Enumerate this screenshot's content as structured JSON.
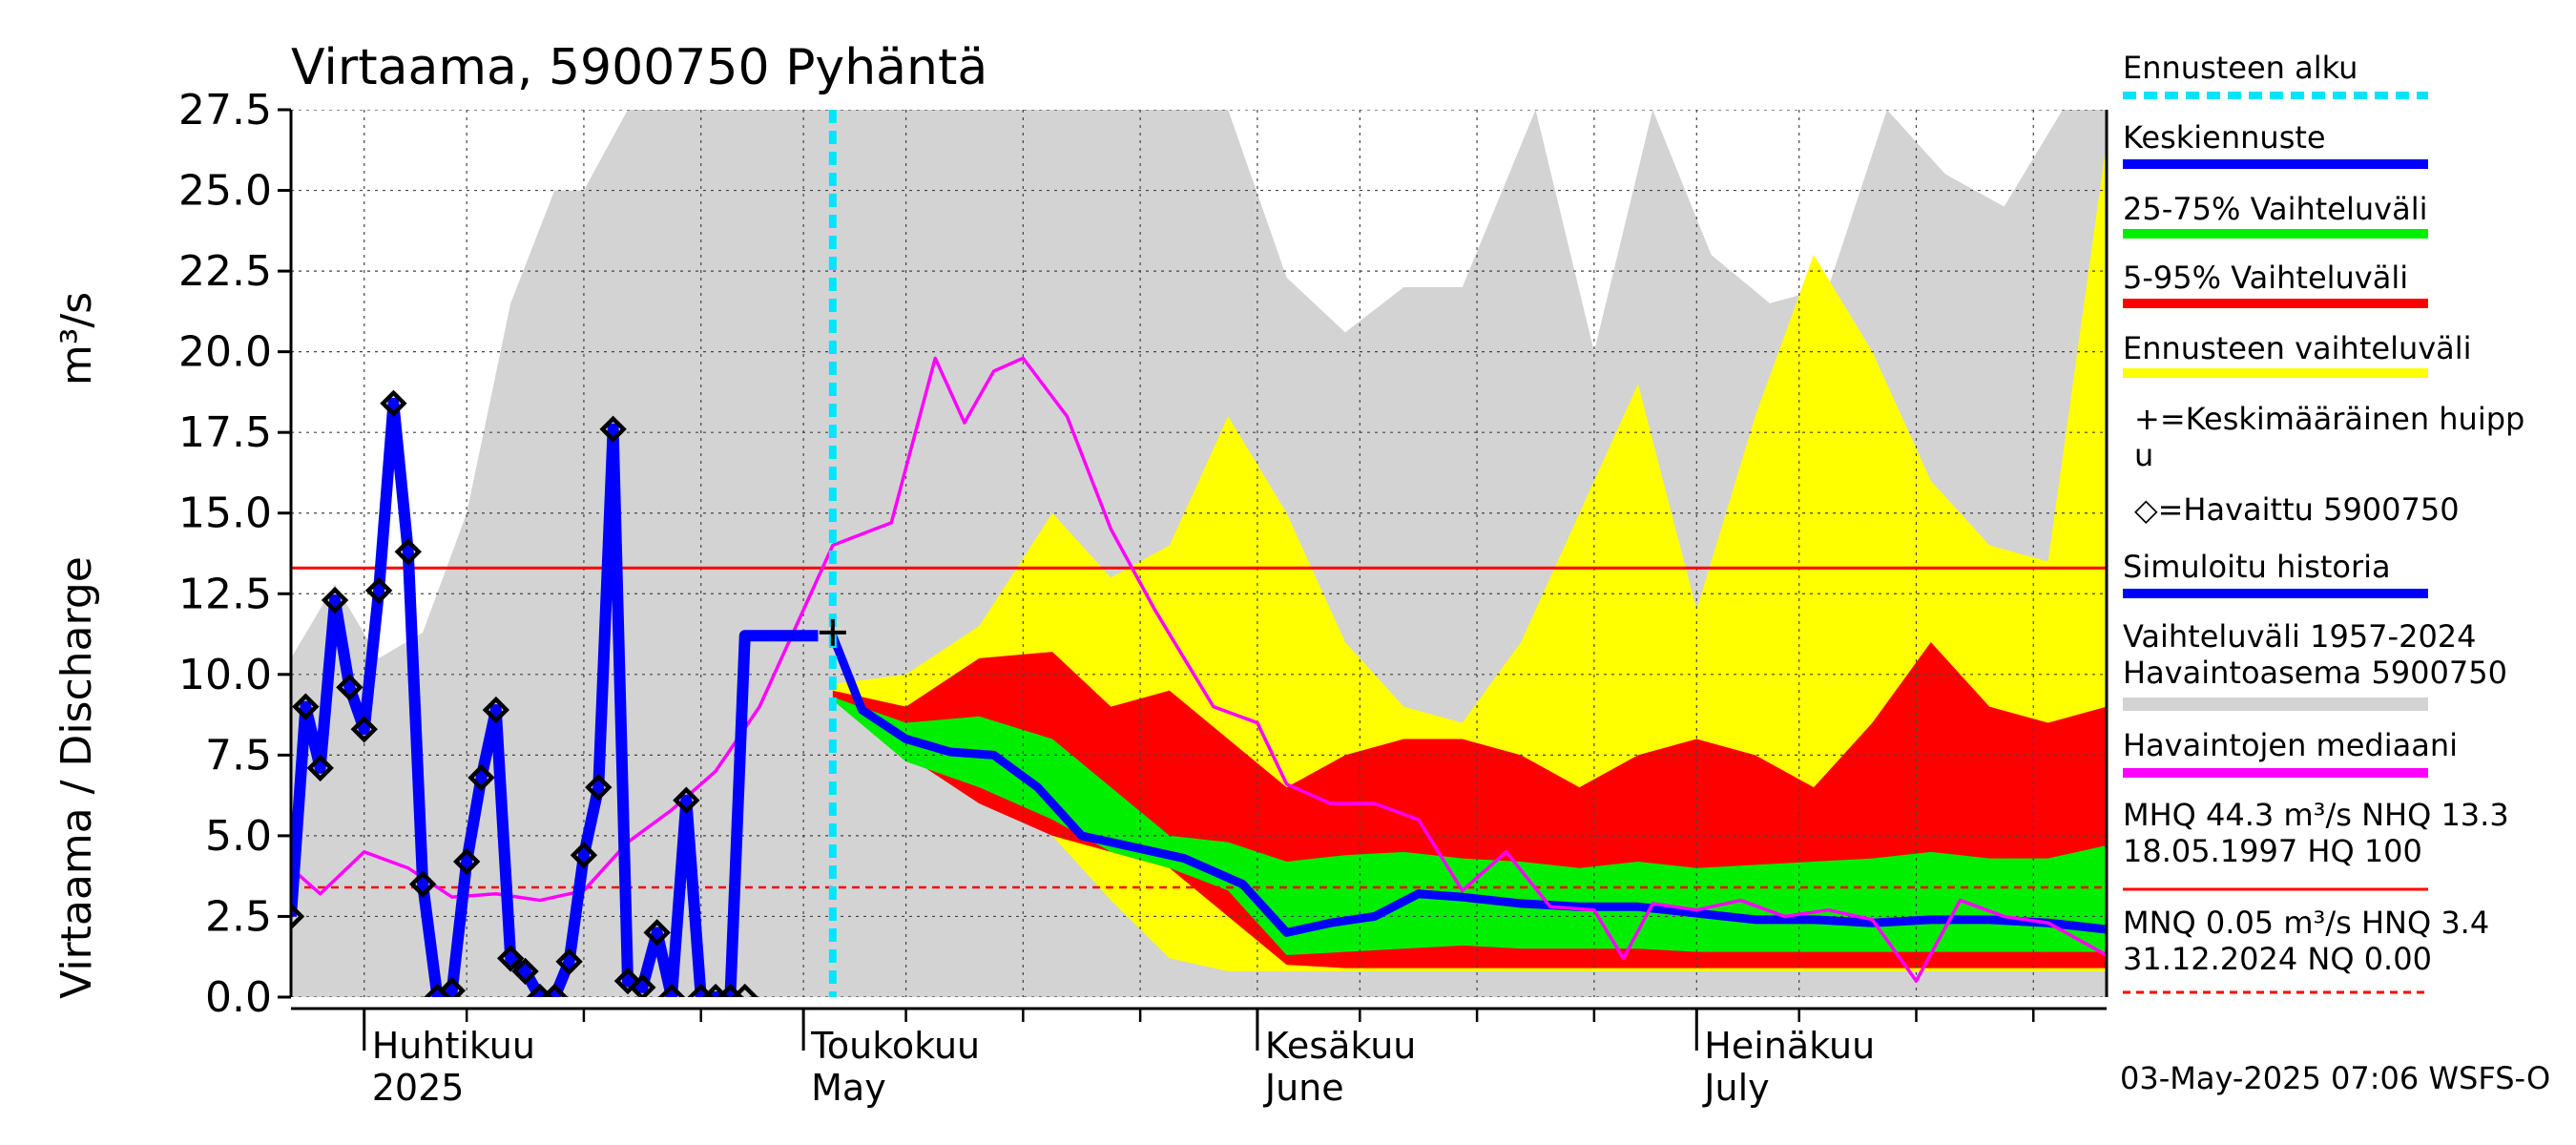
{
  "chart_data": {
    "type": "area",
    "title": "Virtaama, 5900750 Pyhäntä",
    "ylabel_left": "Virtaama / Discharge",
    "ylabel_unit": "m³/s",
    "ylim": [
      0,
      27.5
    ],
    "yticks": [
      "0.0",
      "2.5",
      "5.0",
      "7.5",
      "10.0",
      "12.5",
      "15.0",
      "17.5",
      "20.0",
      "22.5",
      "25.0",
      "27.5"
    ],
    "x_start": "2025-03-27",
    "x_end": "2025-07-29",
    "x_month_labels": [
      {
        "date": "2025-04-01",
        "fi": "Huhtikuu",
        "en": "2025"
      },
      {
        "date": "2025-05-01",
        "fi": "Toukokuu",
        "en": "May"
      },
      {
        "date": "2025-06-01",
        "fi": "Kesäkuu",
        "en": "June"
      },
      {
        "date": "2025-07-01",
        "fi": "Heinäkuu",
        "en": "July"
      }
    ],
    "forecast_start": "2025-05-03",
    "mhq_line": 13.3,
    "mnq_line": 3.4,
    "mean_peak": {
      "date": "2025-05-03",
      "value": 11.3
    },
    "series": [
      {
        "name": "Vaihteluväli 1957-2024 Havaintoasema 5900750",
        "kind": "band",
        "color": "#d3d3d3",
        "x": [
          "2025-03-27",
          "2025-03-30",
          "2025-04-02",
          "2025-04-05",
          "2025-04-08",
          "2025-04-11",
          "2025-04-14",
          "2025-04-16",
          "2025-04-19",
          "2025-04-22",
          "2025-04-25",
          "2025-04-28",
          "2025-05-02",
          "2025-05-06",
          "2025-05-10",
          "2025-05-15",
          "2025-05-20",
          "2025-05-25",
          "2025-05-30",
          "2025-06-03",
          "2025-06-07",
          "2025-06-11",
          "2025-06-15",
          "2025-06-20",
          "2025-06-24",
          "2025-06-28",
          "2025-07-02",
          "2025-07-06",
          "2025-07-10",
          "2025-07-14",
          "2025-07-18",
          "2025-07-22",
          "2025-07-26",
          "2025-07-29"
        ],
        "lower": [
          0,
          0,
          0,
          0,
          0,
          0,
          0,
          0,
          0,
          0,
          0,
          0,
          0,
          0,
          0,
          0,
          0,
          0,
          0,
          0,
          0,
          0,
          0,
          0,
          0,
          0,
          0,
          0,
          0,
          0,
          0,
          0,
          0,
          0
        ],
        "upper": [
          10.5,
          12.8,
          10.5,
          11.3,
          15.0,
          21.5,
          25.0,
          25.0,
          27.5,
          27.5,
          27.5,
          27.5,
          27.5,
          27.5,
          27.5,
          27.5,
          27.5,
          27.5,
          27.5,
          22.3,
          20.6,
          22.0,
          22.0,
          27.5,
          20.0,
          27.5,
          23.0,
          21.5,
          22.0,
          27.5,
          25.5,
          24.5,
          27.5,
          27.5
        ]
      },
      {
        "name": "Ennusteen vaihteluväli",
        "kind": "band",
        "color": "#ffff00",
        "x": [
          "2025-05-03",
          "2025-05-08",
          "2025-05-13",
          "2025-05-18",
          "2025-05-22",
          "2025-05-26",
          "2025-05-30",
          "2025-06-03",
          "2025-06-07",
          "2025-06-11",
          "2025-06-15",
          "2025-06-19",
          "2025-06-23",
          "2025-06-27",
          "2025-07-01",
          "2025-07-05",
          "2025-07-09",
          "2025-07-13",
          "2025-07-17",
          "2025-07-21",
          "2025-07-25",
          "2025-07-29"
        ],
        "lower": [
          9.5,
          8.0,
          6.5,
          5.0,
          3.0,
          1.2,
          0.8,
          0.8,
          0.8,
          0.8,
          0.8,
          0.8,
          0.8,
          0.8,
          0.8,
          0.8,
          0.8,
          0.8,
          0.8,
          0.8,
          0.8,
          0.8
        ],
        "upper": [
          9.7,
          10.0,
          11.5,
          15.0,
          13.0,
          14.0,
          18.0,
          15.0,
          11.0,
          9.0,
          8.5,
          11.0,
          15.0,
          19.0,
          12.0,
          18.0,
          23.0,
          20.0,
          16.0,
          14.0,
          13.5,
          26.5
        ]
      },
      {
        "name": "5-95% Vaihteluväli",
        "kind": "band",
        "color": "#ff0000",
        "x": [
          "2025-05-03",
          "2025-05-08",
          "2025-05-13",
          "2025-05-18",
          "2025-05-22",
          "2025-05-26",
          "2025-05-30",
          "2025-06-03",
          "2025-06-07",
          "2025-06-11",
          "2025-06-15",
          "2025-06-19",
          "2025-06-23",
          "2025-06-27",
          "2025-07-01",
          "2025-07-05",
          "2025-07-09",
          "2025-07-13",
          "2025-07-17",
          "2025-07-21",
          "2025-07-25",
          "2025-07-29"
        ],
        "lower": [
          9.3,
          7.5,
          6.0,
          5.0,
          4.5,
          4.0,
          2.5,
          1.0,
          0.9,
          0.9,
          0.9,
          0.9,
          0.9,
          0.9,
          0.9,
          0.9,
          0.9,
          0.9,
          0.9,
          0.9,
          0.9,
          0.9
        ],
        "upper": [
          9.5,
          9.0,
          10.5,
          10.7,
          9.0,
          9.5,
          8.0,
          6.5,
          7.5,
          8.0,
          8.0,
          7.5,
          6.5,
          7.5,
          8.0,
          7.5,
          6.5,
          8.5,
          11.0,
          9.0,
          8.5,
          9.0
        ]
      },
      {
        "name": "25-75% Vaihteluväli",
        "kind": "band",
        "color": "#00ee00",
        "x": [
          "2025-05-03",
          "2025-05-08",
          "2025-05-13",
          "2025-05-18",
          "2025-05-22",
          "2025-05-26",
          "2025-05-30",
          "2025-06-03",
          "2025-06-07",
          "2025-06-11",
          "2025-06-15",
          "2025-06-19",
          "2025-06-23",
          "2025-06-27",
          "2025-07-01",
          "2025-07-05",
          "2025-07-09",
          "2025-07-13",
          "2025-07-17",
          "2025-07-21",
          "2025-07-25",
          "2025-07-29"
        ],
        "lower": [
          9.2,
          7.3,
          6.5,
          5.5,
          4.5,
          4.0,
          3.3,
          1.3,
          1.4,
          1.5,
          1.6,
          1.5,
          1.5,
          1.5,
          1.4,
          1.4,
          1.4,
          1.4,
          1.4,
          1.4,
          1.4,
          1.4
        ],
        "upper": [
          9.3,
          8.5,
          8.7,
          8.0,
          6.5,
          5.0,
          4.8,
          4.2,
          4.4,
          4.5,
          4.3,
          4.2,
          4.0,
          4.2,
          4.0,
          4.1,
          4.2,
          4.3,
          4.5,
          4.3,
          4.3,
          4.7
        ]
      },
      {
        "name": "Keskiennuste",
        "kind": "line",
        "color": "#0000ff",
        "x": [
          "2025-05-03",
          "2025-05-05",
          "2025-05-08",
          "2025-05-11",
          "2025-05-14",
          "2025-05-17",
          "2025-05-20",
          "2025-05-23",
          "2025-05-27",
          "2025-05-31",
          "2025-06-03",
          "2025-06-06",
          "2025-06-09",
          "2025-06-12",
          "2025-06-15",
          "2025-06-19",
          "2025-06-23",
          "2025-06-27",
          "2025-07-01",
          "2025-07-05",
          "2025-07-09",
          "2025-07-13",
          "2025-07-17",
          "2025-07-21",
          "2025-07-25",
          "2025-07-29"
        ],
        "values": [
          11.2,
          8.9,
          8.0,
          7.6,
          7.5,
          6.5,
          5.0,
          4.7,
          4.3,
          3.5,
          2.0,
          2.3,
          2.5,
          3.2,
          3.1,
          2.9,
          2.8,
          2.8,
          2.6,
          2.4,
          2.4,
          2.3,
          2.4,
          2.4,
          2.3,
          2.1
        ]
      },
      {
        "name": "Havaintojen mediaani",
        "kind": "line",
        "color": "#ff00ff",
        "x": [
          "2025-03-27",
          "2025-03-29",
          "2025-04-01",
          "2025-04-04",
          "2025-04-07",
          "2025-04-10",
          "2025-04-13",
          "2025-04-16",
          "2025-04-19",
          "2025-04-22",
          "2025-04-25",
          "2025-04-28",
          "2025-05-01",
          "2025-05-03",
          "2025-05-07",
          "2025-05-10",
          "2025-05-12",
          "2025-05-14",
          "2025-05-16",
          "2025-05-19",
          "2025-05-22",
          "2025-05-25",
          "2025-05-27",
          "2025-05-29",
          "2025-06-01",
          "2025-06-03",
          "2025-06-06",
          "2025-06-09",
          "2025-06-12",
          "2025-06-15",
          "2025-06-18",
          "2025-06-21",
          "2025-06-24",
          "2025-06-26",
          "2025-06-28",
          "2025-07-01",
          "2025-07-04",
          "2025-07-07",
          "2025-07-10",
          "2025-07-13",
          "2025-07-16",
          "2025-07-19",
          "2025-07-22",
          "2025-07-25",
          "2025-07-29"
        ],
        "values": [
          4.0,
          3.2,
          4.5,
          4.0,
          3.1,
          3.2,
          3.0,
          3.3,
          4.8,
          5.8,
          7.0,
          9.0,
          12.0,
          14.0,
          14.7,
          19.8,
          17.8,
          19.4,
          19.8,
          18.0,
          14.5,
          12.0,
          10.5,
          9.0,
          8.5,
          6.6,
          6.0,
          6.0,
          5.5,
          3.3,
          4.5,
          2.8,
          2.7,
          1.2,
          2.9,
          2.7,
          3.0,
          2.5,
          2.7,
          2.4,
          0.5,
          3.0,
          2.5,
          2.3,
          1.3
        ]
      },
      {
        "name": "Simuloitu historia",
        "kind": "line",
        "color": "#0000ff",
        "x": [
          "2025-03-27",
          "2025-03-28",
          "2025-03-29",
          "2025-03-30",
          "2025-03-31",
          "2025-04-01",
          "2025-04-02",
          "2025-04-03",
          "2025-04-04",
          "2025-04-05",
          "2025-04-06",
          "2025-04-07",
          "2025-04-08",
          "2025-04-09",
          "2025-04-10",
          "2025-04-11",
          "2025-04-12",
          "2025-04-13",
          "2025-04-14",
          "2025-04-15",
          "2025-04-16",
          "2025-04-17",
          "2025-04-18",
          "2025-04-19",
          "2025-04-20",
          "2025-04-21",
          "2025-04-22",
          "2025-04-23",
          "2025-04-24",
          "2025-04-25",
          "2025-04-26",
          "2025-04-27",
          "2025-04-28",
          "2025-04-29",
          "2025-04-30",
          "2025-05-01",
          "2025-05-02"
        ],
        "values": [
          2.5,
          9.0,
          7.1,
          12.3,
          9.6,
          8.3,
          12.6,
          18.4,
          13.8,
          3.5,
          0.0,
          0.2,
          4.2,
          6.8,
          8.9,
          1.2,
          0.8,
          0.0,
          0.0,
          1.1,
          4.4,
          6.5,
          17.6,
          0.5,
          0.3,
          2.0,
          0.0,
          6.1,
          0.0,
          0.0,
          0.0,
          11.2,
          11.2,
          11.2,
          11.2,
          11.2,
          11.2
        ]
      },
      {
        "name": "Havaittu 5900750",
        "kind": "points",
        "color": "#000000",
        "x": [
          "2025-03-27",
          "2025-03-28",
          "2025-03-29",
          "2025-03-30",
          "2025-03-31",
          "2025-04-01",
          "2025-04-02",
          "2025-04-03",
          "2025-04-04",
          "2025-04-05",
          "2025-04-06",
          "2025-04-07",
          "2025-04-08",
          "2025-04-09",
          "2025-04-10",
          "2025-04-11",
          "2025-04-12",
          "2025-04-13",
          "2025-04-14",
          "2025-04-15",
          "2025-04-16",
          "2025-04-17",
          "2025-04-18",
          "2025-04-19",
          "2025-04-20",
          "2025-04-21",
          "2025-04-22",
          "2025-04-23",
          "2025-04-24",
          "2025-04-25",
          "2025-04-26",
          "2025-04-27"
        ],
        "values": [
          2.5,
          9.0,
          7.1,
          12.3,
          9.6,
          8.3,
          12.6,
          18.4,
          13.8,
          3.5,
          0.0,
          0.2,
          4.2,
          6.8,
          8.9,
          1.2,
          0.8,
          0.0,
          0.0,
          1.1,
          4.4,
          6.5,
          17.6,
          0.5,
          0.3,
          2.0,
          0.0,
          6.1,
          0.0,
          0.0,
          0.0,
          0.0
        ]
      }
    ],
    "legend": [
      {
        "label": "Ennusteen alku",
        "color": "#00e5ff",
        "style": "dashed"
      },
      {
        "label": "Keskiennuste",
        "color": "#0000ff",
        "style": "solid"
      },
      {
        "label": "25-75% Vaihteluväli",
        "color": "#00ee00",
        "style": "solid"
      },
      {
        "label": "5-95% Vaihteluväli",
        "color": "#ff0000",
        "style": "solid"
      },
      {
        "label": "Ennusteen vaihteluväli",
        "color": "#ffff00",
        "style": "solid"
      },
      {
        "label": "+=Keskimääräinen huippu",
        "color": "#000000",
        "style": "text"
      },
      {
        "label": "◇=Havaittu 5900750",
        "color": "#000000",
        "style": "text"
      },
      {
        "label": "Simuloitu historia",
        "color": "#0000ff",
        "style": "solid"
      },
      {
        "label": "Vaihteluväli 1957-2024",
        "label2": " Havaintoasema 5900750",
        "color": "#d3d3d3",
        "style": "solid"
      },
      {
        "label": "Havaintojen mediaani",
        "color": "#ff00ff",
        "style": "solid"
      },
      {
        "label": "MHQ 44.3 m³/s NHQ 13.3",
        "label2": "18.05.1997 HQ  100",
        "color": "#ff0000",
        "style": "solid"
      },
      {
        "label": "MNQ 0.05 m³/s HNQ  3.4",
        "label2": "31.12.2024 NQ 0.00",
        "color": "#ff0000",
        "style": "dashed"
      }
    ],
    "footer": "03-May-2025 07:06 WSFS-O",
    "grid": true
  }
}
